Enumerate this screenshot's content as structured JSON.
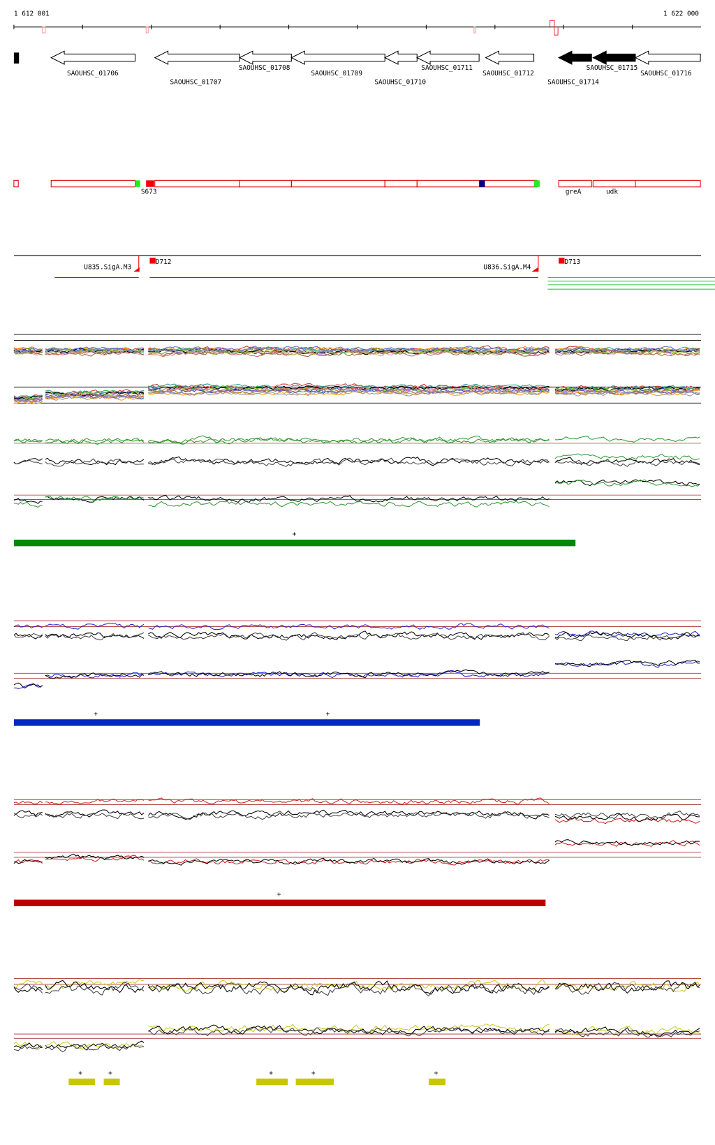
{
  "axis": {
    "start": "1 612 001",
    "end": "1 622 000"
  },
  "genes": [
    "SAOUHSC_01706",
    "SAOUHSC_01707",
    "SAOUHSC_01708",
    "SAOUHSC_01709",
    "SAOUHSC_01710",
    "SAOUHSC_01711",
    "SAOUHSC_01712",
    "SAOUHSC_01714",
    "SAOUHSC_01715",
    "SAOUHSC_01716"
  ],
  "features": [
    "S673",
    "greA",
    "udk"
  ],
  "promoters": [
    "U835.SigA.M3",
    "D712",
    "U836.SigA.M4",
    "D713"
  ],
  "segments": {
    "green": [
      "+"
    ],
    "blue": [
      "+",
      "+"
    ],
    "red": [
      "+"
    ],
    "yellow": [
      "+",
      "+",
      "+",
      "+",
      "+"
    ]
  }
}
